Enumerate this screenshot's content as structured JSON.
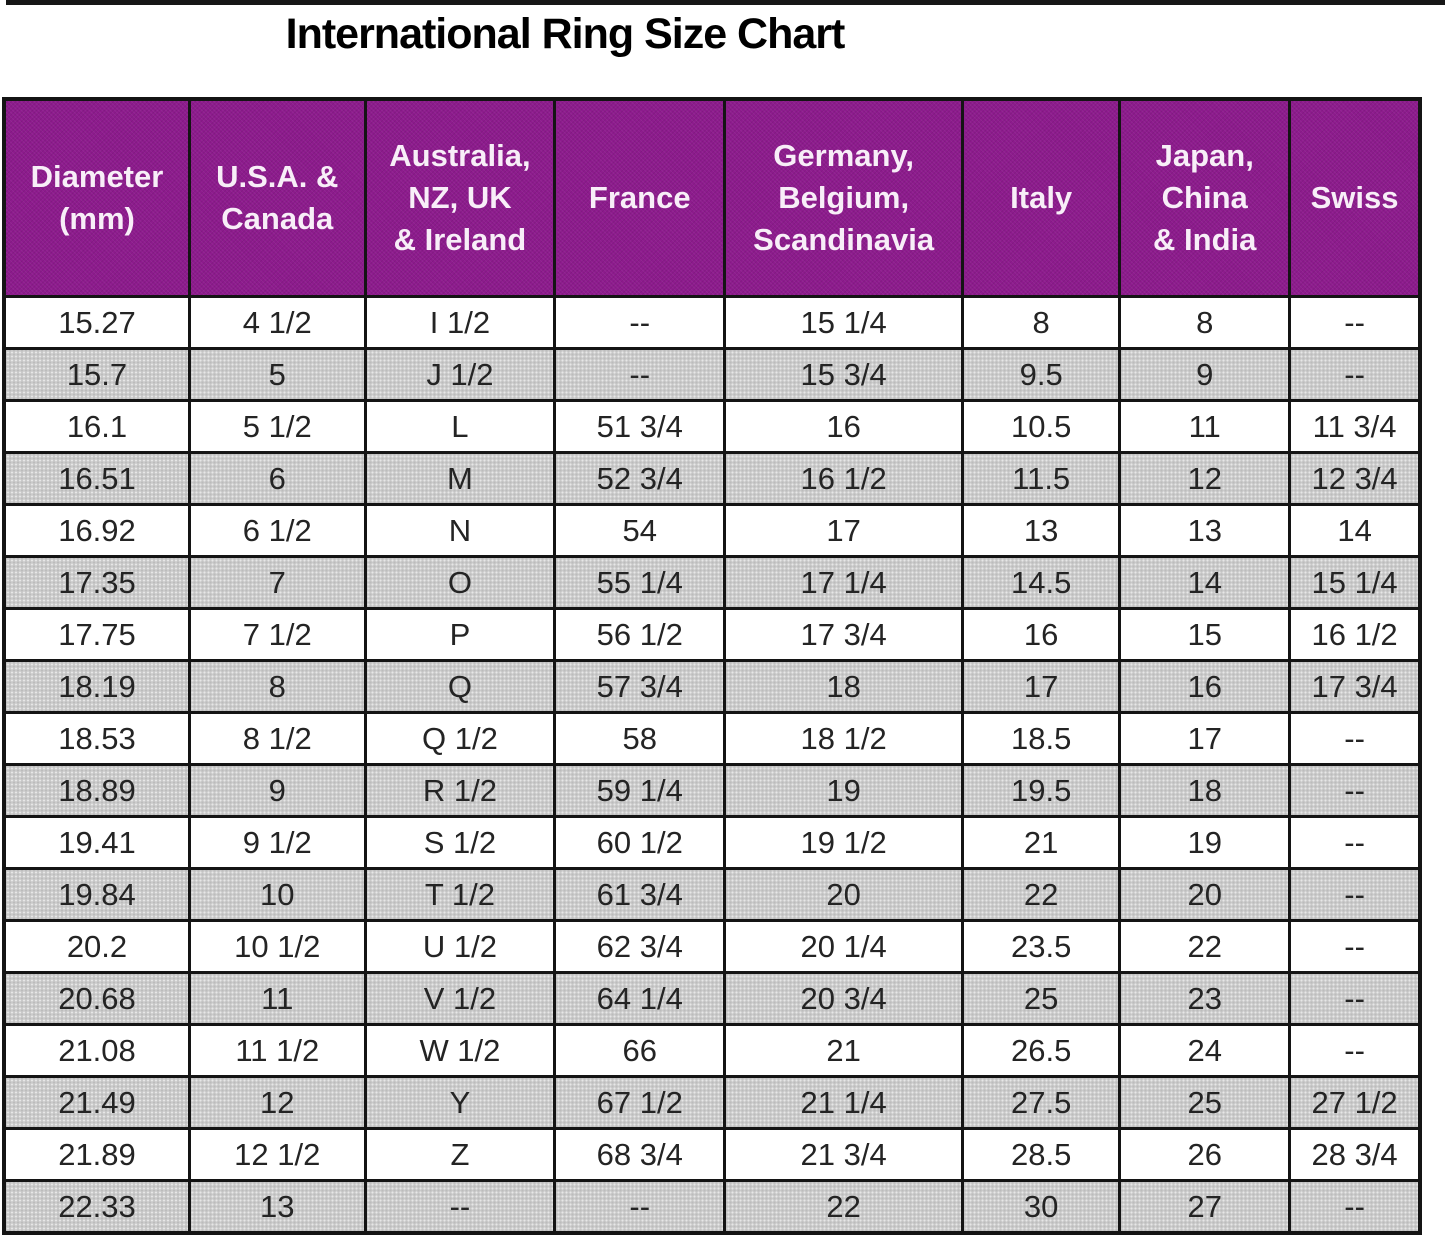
{
  "title": "International Ring Size Chart",
  "display": {
    "headers": [
      "Diameter\n(mm)",
      "U.S.A. &\nCanada",
      "Australia,\nNZ, UK\n& Ireland",
      "France",
      "Germany,\nBelgium,\nScandinavia",
      "Italy",
      "Japan,\nChina\n& India",
      "Swiss"
    ]
  },
  "colors": {
    "header_bg": "#8D1B8D",
    "header_text": "#FFFFFF",
    "row_bg": "#FFFFFF",
    "row_alt_bg": "#CACACA",
    "border": "#141414",
    "title_text": "#000000"
  },
  "chart_data": {
    "type": "table",
    "title": "International Ring Size Chart",
    "columns": [
      "Diameter (mm)",
      "U.S.A. & Canada",
      "Australia, NZ, UK & Ireland",
      "France",
      "Germany, Belgium, Scandinavia",
      "Italy",
      "Japan, China & India",
      "Swiss"
    ],
    "rows": [
      [
        "15.27",
        "4 1/2",
        "I 1/2",
        "--",
        "15 1/4",
        "8",
        "8",
        "--"
      ],
      [
        "15.7",
        "5",
        "J 1/2",
        "--",
        "15 3/4",
        "9.5",
        "9",
        "--"
      ],
      [
        "16.1",
        "5 1/2",
        "L",
        "51 3/4",
        "16",
        "10.5",
        "11",
        "11 3/4"
      ],
      [
        "16.51",
        "6",
        "M",
        "52 3/4",
        "16 1/2",
        "11.5",
        "12",
        "12 3/4"
      ],
      [
        "16.92",
        "6 1/2",
        "N",
        "54",
        "17",
        "13",
        "13",
        "14"
      ],
      [
        "17.35",
        "7",
        "O",
        "55 1/4",
        "17 1/4",
        "14.5",
        "14",
        "15 1/4"
      ],
      [
        "17.75",
        "7 1/2",
        "P",
        "56 1/2",
        "17 3/4",
        "16",
        "15",
        "16 1/2"
      ],
      [
        "18.19",
        "8",
        "Q",
        "57 3/4",
        "18",
        "17",
        "16",
        "17 3/4"
      ],
      [
        "18.53",
        "8 1/2",
        "Q 1/2",
        "58",
        "18 1/2",
        "18.5",
        "17",
        "--"
      ],
      [
        "18.89",
        "9",
        "R 1/2",
        "59 1/4",
        "19",
        "19.5",
        "18",
        "--"
      ],
      [
        "19.41",
        "9 1/2",
        "S 1/2",
        "60 1/2",
        "19 1/2",
        "21",
        "19",
        "--"
      ],
      [
        "19.84",
        "10",
        "T 1/2",
        "61 3/4",
        "20",
        "22",
        "20",
        "--"
      ],
      [
        "20.2",
        "10 1/2",
        "U 1/2",
        "62 3/4",
        "20 1/4",
        "23.5",
        "22",
        "--"
      ],
      [
        "20.68",
        "11",
        "V 1/2",
        "64 1/4",
        "20 3/4",
        "25",
        "23",
        "--"
      ],
      [
        "21.08",
        "11 1/2",
        "W 1/2",
        "66",
        "21",
        "26.5",
        "24",
        "--"
      ],
      [
        "21.49",
        "12",
        "Y",
        "67 1/2",
        "21 1/4",
        "27.5",
        "25",
        "27 1/2"
      ],
      [
        "21.89",
        "12 1/2",
        "Z",
        "68 3/4",
        "21 3/4",
        "28.5",
        "26",
        "28 3/4"
      ],
      [
        "22.33",
        "13",
        "--",
        "--",
        "22",
        "30",
        "27",
        "--"
      ]
    ]
  }
}
